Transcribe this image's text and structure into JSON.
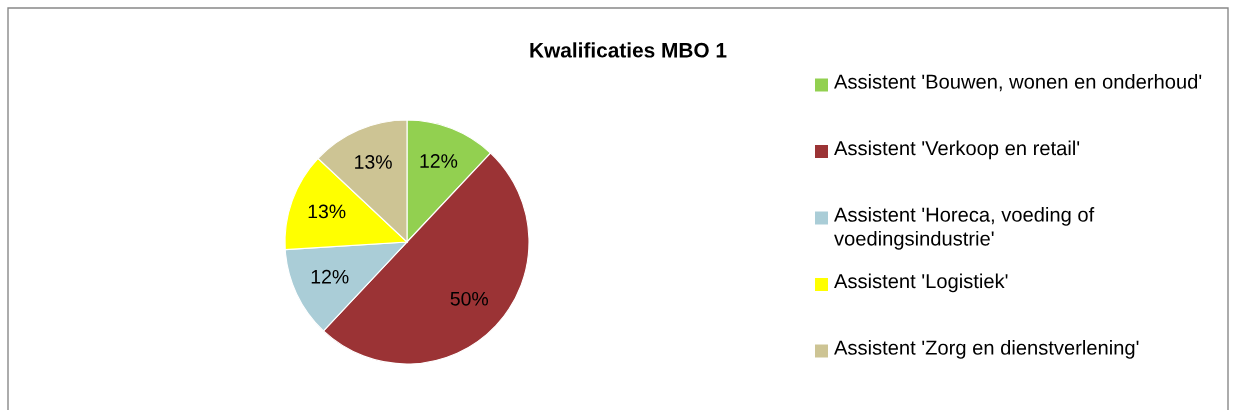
{
  "chart_data": {
    "type": "pie",
    "title": "Kwalificaties MBO 1",
    "categories": [
      "Assistent 'Bouwen, wonen en onderhoud'",
      "Assistent 'Verkoop en retail'",
      "Assistent 'Horeca, voeding of voedingsindustrie'",
      "Assistent 'Logistiek'",
      "Assistent 'Zorg en dienstverlening'"
    ],
    "values": [
      12,
      50,
      12,
      13,
      13
    ],
    "colors": [
      "#92d050",
      "#9b3335",
      "#aacdd7",
      "#ffff00",
      "#cdc494"
    ],
    "value_labels": [
      "12%",
      "50%",
      "12%",
      "13%",
      "13%"
    ],
    "legend": "right"
  }
}
